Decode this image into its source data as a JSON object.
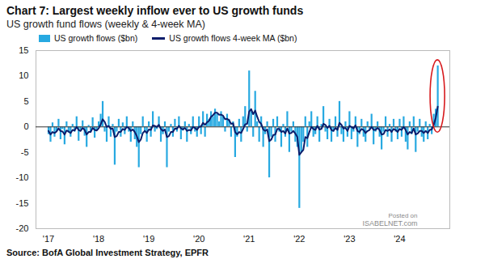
{
  "chart_data": {
    "type": "bar",
    "title": "Chart 7: Largest weekly inflow ever to US growth funds",
    "subtitle": "US growth fund flows (weekly & 4-week MA)",
    "source": "Source: BofA Global Investment Strategy, EPFR",
    "annotations": [
      "Posted on",
      "ISABELNET.com"
    ],
    "x": [
      2017,
      2017.04,
      2017.08,
      2017.12,
      2017.16,
      2017.2,
      2017.24,
      2017.28,
      2017.32,
      2017.36,
      2017.4,
      2017.44,
      2017.48,
      2017.52,
      2017.56,
      2017.6,
      2017.64,
      2017.68,
      2017.72,
      2017.76,
      2017.8,
      2017.84,
      2017.88,
      2017.92,
      2017.96,
      2018,
      2018.04,
      2018.08,
      2018.12,
      2018.16,
      2018.2,
      2018.24,
      2018.28,
      2018.32,
      2018.36,
      2018.4,
      2018.44,
      2018.48,
      2018.52,
      2018.56,
      2018.6,
      2018.64,
      2018.68,
      2018.72,
      2018.76,
      2018.8,
      2018.84,
      2018.88,
      2018.92,
      2018.96,
      2019,
      2019.04,
      2019.08,
      2019.12,
      2019.16,
      2019.2,
      2019.24,
      2019.28,
      2019.32,
      2019.36,
      2019.4,
      2019.44,
      2019.48,
      2019.52,
      2019.56,
      2019.6,
      2019.64,
      2019.68,
      2019.72,
      2019.76,
      2019.8,
      2019.84,
      2019.88,
      2019.92,
      2019.96,
      2020,
      2020.04,
      2020.08,
      2020.12,
      2020.16,
      2020.2,
      2020.24,
      2020.28,
      2020.32,
      2020.36,
      2020.4,
      2020.44,
      2020.48,
      2020.52,
      2020.56,
      2020.6,
      2020.64,
      2020.68,
      2020.72,
      2020.76,
      2020.8,
      2020.84,
      2020.88,
      2020.92,
      2020.96,
      2021,
      2021.04,
      2021.08,
      2021.12,
      2021.16,
      2021.2,
      2021.24,
      2021.28,
      2021.32,
      2021.36,
      2021.4,
      2021.44,
      2021.48,
      2021.52,
      2021.56,
      2021.6,
      2021.64,
      2021.68,
      2021.72,
      2021.76,
      2021.8,
      2021.84,
      2021.88,
      2021.92,
      2021.96,
      2022,
      2022.04,
      2022.08,
      2022.12,
      2022.16,
      2022.2,
      2022.24,
      2022.28,
      2022.32,
      2022.36,
      2022.4,
      2022.44,
      2022.48,
      2022.52,
      2022.56,
      2022.6,
      2022.64,
      2022.68,
      2022.72,
      2022.76,
      2022.8,
      2022.84,
      2022.88,
      2022.92,
      2022.96,
      2023,
      2023.04,
      2023.08,
      2023.12,
      2023.16,
      2023.2,
      2023.24,
      2023.28,
      2023.32,
      2023.36,
      2023.4,
      2023.44,
      2023.48,
      2023.52,
      2023.56,
      2023.6,
      2023.64,
      2023.68,
      2023.72,
      2023.76,
      2023.8,
      2023.84,
      2023.88,
      2023.92,
      2023.96,
      2024,
      2024.04,
      2024.08,
      2024.12,
      2024.16,
      2024.2,
      2024.24,
      2024.28,
      2024.32,
      2024.36,
      2024.4,
      2024.44,
      2024.48,
      2024.52,
      2024.56,
      2024.6,
      2024.64,
      2024.68,
      2024.72,
      2024.76
    ],
    "series": [
      {
        "name": "US growth flows ($bn)",
        "type": "bar",
        "color": "#27a9e1",
        "values": [
          -1.5,
          -3,
          0.8,
          -2,
          -1,
          1.5,
          -2.5,
          -0.5,
          -3.5,
          1,
          -1.2,
          -2,
          0.5,
          -1,
          2,
          -2.8,
          -0.6,
          1.2,
          -1.8,
          -4,
          0.3,
          -1,
          1.8,
          -2.2,
          -0.8,
          1,
          2.5,
          5,
          -1,
          -3,
          2,
          -2,
          0.5,
          -7.5,
          -1,
          1.5,
          -2,
          0.8,
          -1.5,
          2,
          -1,
          -3,
          1,
          -2.5,
          -4,
          -8,
          -1.5,
          2,
          -1,
          -3,
          1,
          -2,
          3,
          -1,
          -0.5,
          2,
          -3,
          -1.5,
          1,
          -8,
          -1,
          0.5,
          -2,
          1.5,
          -1,
          2,
          -2.5,
          -0.8,
          1,
          -3,
          0.5,
          -1.5,
          2,
          -1,
          -2,
          2,
          -1.5,
          3,
          -2,
          2.5,
          1.5,
          3,
          2,
          3.5,
          2.5,
          1,
          3,
          2,
          -1,
          2.5,
          1.5,
          -2,
          1,
          -6,
          -2,
          1.5,
          -3,
          2,
          4,
          -1,
          11,
          3,
          -2,
          7,
          1,
          -3,
          2,
          -4,
          -1.5,
          1,
          -10,
          -2,
          1.5,
          -3,
          2,
          -1,
          -4,
          0.5,
          -2,
          3,
          -5,
          -1,
          1,
          -3,
          -4,
          -16,
          -5,
          -3,
          2,
          -4,
          1,
          3,
          -2,
          -1.5,
          2,
          -3,
          0.5,
          4,
          -1,
          -2.5,
          1.5,
          -3,
          -1,
          2,
          -2,
          5,
          -1.5,
          -3,
          1,
          -2,
          3,
          -2.5,
          -1,
          2,
          -4,
          -1.5,
          1.5,
          -2,
          -3,
          1,
          -0.5,
          2.5,
          -3.5,
          -1,
          1,
          -2,
          -4.5,
          -1,
          2,
          -2,
          0.5,
          -3,
          1.5,
          -1,
          -2.5,
          1.5,
          -2,
          2,
          -3,
          -4.5,
          1,
          -1.5,
          2,
          -5,
          -1,
          1.5,
          -2,
          -3,
          1,
          -2.5,
          0.5,
          -1.5,
          2.5,
          3.5,
          12
        ]
      },
      {
        "name": "US growth flows 4-week MA ($bn)",
        "type": "line",
        "color": "#0b1d6b",
        "values": [
          -0.8,
          -1.5,
          -1,
          -1.2,
          -0.9,
          -0.3,
          -0.8,
          -0.9,
          -1.5,
          -0.7,
          -0.9,
          -1.2,
          -0.6,
          -0.7,
          0,
          -0.6,
          -0.8,
          -0.2,
          -0.6,
          -1.5,
          -1,
          -1,
          -0.2,
          -0.6,
          -0.7,
          -0.3,
          0.5,
          1.5,
          1,
          0,
          0.2,
          -0.4,
          -0.3,
          -2,
          -1.8,
          -1,
          -1,
          -0.4,
          -0.6,
          0,
          -0.2,
          -0.8,
          -0.5,
          -1,
          -1.8,
          -3,
          -2.5,
          -1.2,
          -0.8,
          -1.2,
          -0.5,
          -0.6,
          0.3,
          0.2,
          0,
          0.4,
          -0.4,
          -0.8,
          -0.5,
          -2,
          -1.8,
          -1,
          -1,
          -0.3,
          -0.4,
          0.2,
          -0.3,
          -0.5,
          -0.2,
          -0.8,
          -0.6,
          -0.7,
          0,
          -0.2,
          -0.6,
          0,
          0.1,
          0.8,
          0.4,
          0.9,
          1.2,
          2,
          2.3,
          2.8,
          2.8,
          2.4,
          2.4,
          2.2,
          1.5,
          1.6,
          1.3,
          0.6,
          0.7,
          -1,
          -1.5,
          -1,
          -1.2,
          -0.4,
          0.5,
          0.6,
          3,
          3.5,
          2.5,
          3.2,
          2,
          1,
          0.6,
          -0.5,
          -0.8,
          -0.5,
          -2.8,
          -2.5,
          -1.6,
          -1.5,
          -0.4,
          -0.4,
          -1,
          -0.8,
          -1.3,
          -0.3,
          -1.3,
          -1.2,
          -0.8,
          -1.3,
          -2,
          -5.5,
          -5,
          -4.5,
          -2,
          -2.2,
          -1,
          0,
          -0.4,
          -0.6,
          0.2,
          -0.5,
          -0.4,
          0.6,
          0.4,
          -0.2,
          0.2,
          -0.6,
          -0.8,
          -0.2,
          -0.6,
          0.8,
          0.4,
          -0.3,
          -0.2,
          -0.8,
          0.2,
          0,
          -0.3,
          0.3,
          -0.8,
          -1,
          -0.4,
          -0.6,
          -1.2,
          -0.8,
          -0.6,
          0,
          -0.6,
          -0.6,
          -0.2,
          -0.6,
          -1.5,
          -1.4,
          -0.6,
          -0.8,
          -0.5,
          -1,
          -0.4,
          -0.6,
          -1,
          -0.4,
          -0.6,
          0,
          -0.6,
          -1.5,
          -1,
          -1.2,
          -0.3,
          -1.5,
          -1.3,
          -0.8,
          -0.8,
          -1.2,
          -0.8,
          -1.2,
          -0.6,
          -0.5,
          0.4,
          1.8,
          4
        ]
      }
    ],
    "xlim": [
      2016.75,
      2025.0
    ],
    "xticks": [
      {
        "value": 2017,
        "label": "'17"
      },
      {
        "value": 2018,
        "label": "'18"
      },
      {
        "value": 2019,
        "label": "'19"
      },
      {
        "value": 2020,
        "label": "'20"
      },
      {
        "value": 2021,
        "label": "'21"
      },
      {
        "value": 2022,
        "label": "'22"
      },
      {
        "value": 2023,
        "label": "'23"
      },
      {
        "value": 2024,
        "label": "'24"
      }
    ],
    "ylim": [
      -20,
      15
    ],
    "yticks": [
      -20,
      -15,
      -10,
      -5,
      0,
      5,
      10,
      15
    ],
    "grid": false
  }
}
